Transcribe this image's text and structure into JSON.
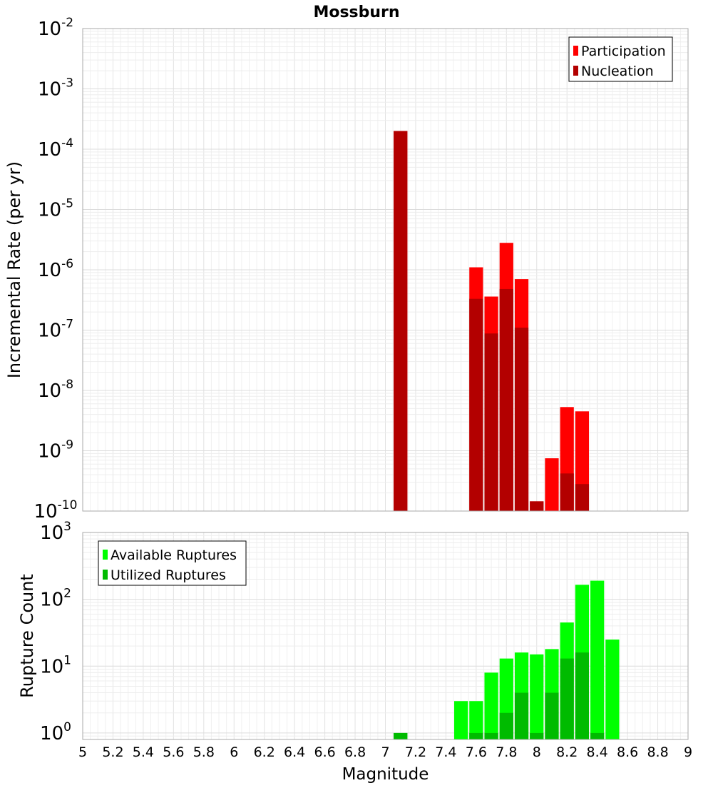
{
  "chart_data": [
    {
      "type": "bar",
      "title": "Mossburn",
      "ylabel": "Incremental Rate (per yr)",
      "y_scale": "log",
      "ylim": [
        1e-10,
        0.01
      ],
      "y_ticks": [
        {
          "base": "10",
          "exp": "-10",
          "value": 1e-10
        },
        {
          "base": "10",
          "exp": "-9",
          "value": 1e-09
        },
        {
          "base": "10",
          "exp": "-8",
          "value": 1e-08
        },
        {
          "base": "10",
          "exp": "-7",
          "value": 1e-07
        },
        {
          "base": "10",
          "exp": "-6",
          "value": 1e-06
        },
        {
          "base": "10",
          "exp": "-5",
          "value": 1e-05
        },
        {
          "base": "10",
          "exp": "-4",
          "value": 0.0001
        },
        {
          "base": "10",
          "exp": "-3",
          "value": 0.001
        },
        {
          "base": "10",
          "exp": "-2",
          "value": 0.01
        }
      ],
      "xlim": [
        5,
        9
      ],
      "bar_width": 0.1,
      "grid": true,
      "legend_position": "top-right",
      "series": [
        {
          "name": "Participation",
          "color": "#ff0000",
          "x": [
            7.1,
            7.6,
            7.7,
            7.8,
            7.9,
            8.0,
            8.1,
            8.2,
            8.3
          ],
          "values": [
            0.0002,
            1.1e-06,
            3.6e-07,
            2.8e-06,
            7e-07,
            1.45e-10,
            7.5e-10,
            5.3e-09,
            4.5e-09
          ]
        },
        {
          "name": "Nucleation",
          "color": "#b30000",
          "x": [
            7.1,
            7.6,
            7.7,
            7.8,
            7.9,
            8.0,
            8.1,
            8.2,
            8.3
          ],
          "values": [
            0.0002,
            3.3e-07,
            8.8e-08,
            4.8e-07,
            1.1e-07,
            1.45e-10,
            1e-10,
            4.2e-10,
            2.8e-10
          ]
        }
      ]
    },
    {
      "type": "bar",
      "xlabel": "Magnitude",
      "ylabel": "Rupture Count",
      "y_scale": "log",
      "ylim": [
        0.8,
        1000
      ],
      "y_ticks": [
        {
          "base": "10",
          "exp": "0",
          "value": 1
        },
        {
          "base": "10",
          "exp": "1",
          "value": 10
        },
        {
          "base": "10",
          "exp": "2",
          "value": 100
        },
        {
          "base": "10",
          "exp": "3",
          "value": 1000
        }
      ],
      "xlim": [
        5,
        9
      ],
      "x_ticks": [
        "5",
        "5.2",
        "5.4",
        "5.6",
        "5.8",
        "6",
        "6.2",
        "6.4",
        "6.6",
        "6.8",
        "7",
        "7.2",
        "7.4",
        "7.6",
        "7.8",
        "8",
        "8.2",
        "8.4",
        "8.6",
        "8.8",
        "9"
      ],
      "bar_width": 0.1,
      "grid": true,
      "legend_position": "top-left",
      "series": [
        {
          "name": "Available Ruptures",
          "color": "#00ff00",
          "x": [
            7.1,
            7.5,
            7.6,
            7.7,
            7.8,
            7.9,
            8.0,
            8.1,
            8.2,
            8.3,
            8.4,
            8.5
          ],
          "values": [
            1,
            3,
            3,
            8,
            13,
            16,
            15,
            18,
            45,
            165,
            190,
            25
          ]
        },
        {
          "name": "Utilized Ruptures",
          "color": "#00bb00",
          "x": [
            7.1,
            7.6,
            7.7,
            7.8,
            7.9,
            8.0,
            8.1,
            8.2,
            8.3,
            8.4
          ],
          "values": [
            1,
            1,
            1,
            2,
            4,
            1,
            4,
            13,
            16,
            1
          ]
        }
      ]
    }
  ]
}
